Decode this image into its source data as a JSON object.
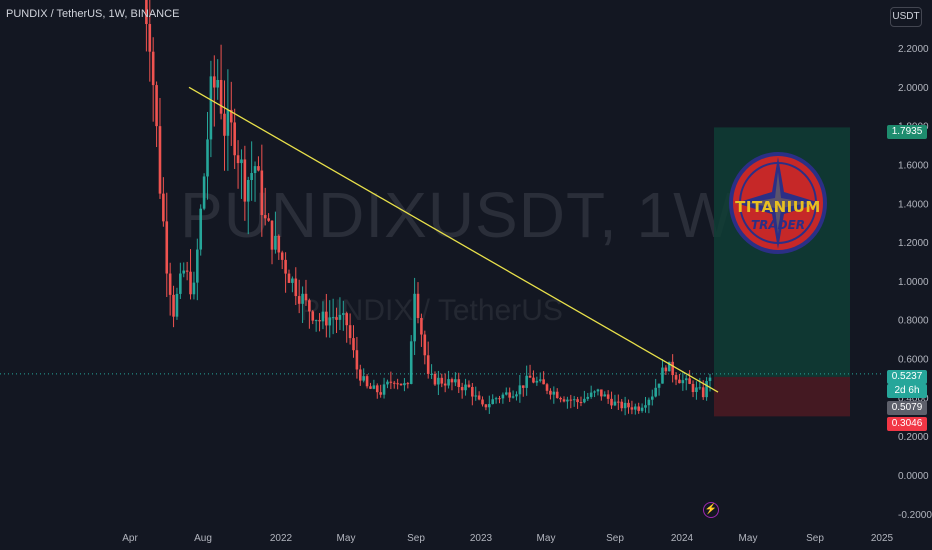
{
  "header": {
    "title": "PUNDIX / TetherUS, 1W, BINANCE",
    "currency_button": "USDT"
  },
  "watermark": {
    "symbol": "PUNDIXUSDT, 1W",
    "description": "PUNDIX / TetherUS"
  },
  "logo": {
    "line1": "TITANIUM",
    "line2": "TRADER"
  },
  "colors": {
    "background": "#131722",
    "bull": "#26a69a",
    "bear": "#ef5350",
    "trendline": "#e8e04a",
    "target_zone": "#0f3d35",
    "stop_zone": "#4a1a22"
  },
  "chart_data": {
    "type": "candlestick",
    "y_axis": {
      "ticks": [
        2.2,
        2.0,
        1.8,
        1.6,
        1.4,
        1.2,
        1.0,
        0.8,
        0.6,
        0.4,
        0.2,
        0.0,
        -0.2
      ],
      "tick_labels": [
        "2.2000",
        "2.0000",
        "1.8000",
        "1.6000",
        "1.4000",
        "1.2000",
        "1.0000",
        "0.8000",
        "0.6000",
        "0.4000",
        "0.2000",
        "0.0000",
        "-0.2000"
      ],
      "range": [
        -0.25,
        2.45
      ]
    },
    "x_axis": {
      "tick_labels": [
        "Apr",
        "Aug",
        "2022",
        "May",
        "Sep",
        "2023",
        "May",
        "Sep",
        "2024",
        "May",
        "Sep",
        "2025"
      ]
    },
    "anchors": [
      [
        0,
        2.5
      ],
      [
        2,
        2.3
      ],
      [
        5,
        1.5
      ],
      [
        7,
        1.1
      ],
      [
        9,
        0.85
      ],
      [
        12,
        1.05
      ],
      [
        15,
        0.95
      ],
      [
        18,
        1.55
      ],
      [
        20,
        1.95
      ],
      [
        22,
        2.05
      ],
      [
        24,
        1.8
      ],
      [
        27,
        1.75
      ],
      [
        30,
        1.5
      ],
      [
        33,
        1.6
      ],
      [
        36,
        1.3
      ],
      [
        40,
        1.15
      ],
      [
        44,
        1.0
      ],
      [
        48,
        0.88
      ],
      [
        52,
        0.8
      ],
      [
        56,
        0.82
      ],
      [
        60,
        0.78
      ],
      [
        63,
        0.55
      ],
      [
        66,
        0.45
      ],
      [
        70,
        0.43
      ],
      [
        74,
        0.5
      ],
      [
        78,
        0.45
      ],
      [
        80,
        0.98
      ],
      [
        84,
        0.5
      ],
      [
        90,
        0.48
      ],
      [
        96,
        0.45
      ],
      [
        100,
        0.35
      ],
      [
        104,
        0.4
      ],
      [
        110,
        0.44
      ],
      [
        114,
        0.5
      ],
      [
        118,
        0.46
      ],
      [
        124,
        0.4
      ],
      [
        128,
        0.38
      ],
      [
        134,
        0.43
      ],
      [
        140,
        0.36
      ],
      [
        146,
        0.35
      ],
      [
        150,
        0.42
      ],
      [
        154,
        0.57
      ],
      [
        158,
        0.5
      ],
      [
        162,
        0.45
      ],
      [
        165,
        0.42
      ],
      [
        167,
        0.52
      ]
    ],
    "trendline": {
      "start_price": 2.0,
      "end_price": 0.43
    },
    "position": {
      "entry": 0.5079,
      "target": 1.7935,
      "stop": 0.3046
    },
    "price_labels": {
      "current": "0.5237",
      "countdown": "2d 6h",
      "entry": "0.5079",
      "target": "1.7935",
      "stop": "0.3046"
    }
  }
}
